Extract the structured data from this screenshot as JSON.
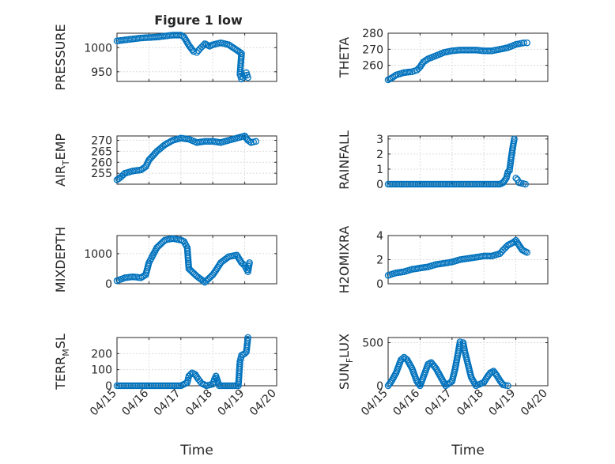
{
  "figure_title": "Figure 1 low",
  "chart_data": [
    {
      "type": "scatter",
      "ylabel": "PRESSURE",
      "ylim": [
        930,
        1030
      ],
      "yticks": [
        950,
        1000
      ],
      "xlim": [
        "04/15",
        "04/20"
      ],
      "xticks": [
        "04/15",
        "04/16",
        "04/17",
        "04/18",
        "04/19",
        "04/20"
      ],
      "xticklabels_visible": false,
      "xlabel": "",
      "points": [
        [
          0,
          1014
        ],
        [
          0.25,
          1016
        ],
        [
          0.5,
          1018
        ],
        [
          0.75,
          1020
        ],
        [
          1.0,
          1021
        ],
        [
          1.25,
          1022
        ],
        [
          1.5,
          1024
        ],
        [
          1.75,
          1026
        ],
        [
          2.0,
          1026
        ],
        [
          2.1,
          1022
        ],
        [
          2.25,
          1005
        ],
        [
          2.4,
          992
        ],
        [
          2.5,
          990
        ],
        [
          2.6,
          998
        ],
        [
          2.75,
          1008
        ],
        [
          2.9,
          1003
        ],
        [
          3.0,
          1006
        ],
        [
          3.25,
          1010
        ],
        [
          3.5,
          1006
        ],
        [
          3.75,
          995
        ],
        [
          3.9,
          988
        ],
        [
          3.85,
          945
        ],
        [
          3.9,
          935
        ],
        [
          4.0,
          942
        ],
        [
          4.05,
          948
        ],
        [
          4.1,
          938
        ]
      ]
    },
    {
      "type": "scatter",
      "ylabel": "THETA",
      "ylim": [
        250,
        280
      ],
      "yticks": [
        260,
        270,
        280
      ],
      "xlim": [
        "04/15",
        "04/20"
      ],
      "xticks": [
        "04/15",
        "04/16",
        "04/17",
        "04/18",
        "04/19",
        "04/20"
      ],
      "xticklabels_visible": false,
      "xlabel": "",
      "points": [
        [
          0,
          251
        ],
        [
          0.1,
          252
        ],
        [
          0.25,
          254
        ],
        [
          0.5,
          255.5
        ],
        [
          0.75,
          256
        ],
        [
          0.9,
          257
        ],
        [
          1.0,
          259
        ],
        [
          1.1,
          262
        ],
        [
          1.25,
          264
        ],
        [
          1.5,
          266
        ],
        [
          1.75,
          268
        ],
        [
          2.0,
          269
        ],
        [
          2.25,
          269.5
        ],
        [
          2.5,
          269.5
        ],
        [
          2.75,
          269.5
        ],
        [
          3.0,
          269
        ],
        [
          3.25,
          269
        ],
        [
          3.5,
          270
        ],
        [
          3.75,
          271
        ],
        [
          4.0,
          273
        ],
        [
          4.25,
          274
        ],
        [
          4.35,
          274
        ]
      ]
    },
    {
      "type": "scatter",
      "ylabel": "AIR_TEMP",
      "ylim": [
        250,
        272
      ],
      "yticks": [
        255,
        260,
        265,
        270
      ],
      "xlim": [
        "04/15",
        "04/20"
      ],
      "xticks": [
        "04/15",
        "04/16",
        "04/17",
        "04/18",
        "04/19",
        "04/20"
      ],
      "xticklabels_visible": false,
      "xlabel": "",
      "points": [
        [
          0,
          252
        ],
        [
          0.1,
          253
        ],
        [
          0.25,
          255
        ],
        [
          0.5,
          256
        ],
        [
          0.75,
          256.5
        ],
        [
          0.9,
          258
        ],
        [
          1.0,
          261
        ],
        [
          1.25,
          265
        ],
        [
          1.5,
          268
        ],
        [
          1.75,
          270
        ],
        [
          2.0,
          271
        ],
        [
          2.25,
          270.5
        ],
        [
          2.5,
          269
        ],
        [
          2.75,
          269.5
        ],
        [
          3.0,
          269.5
        ],
        [
          3.25,
          269
        ],
        [
          3.5,
          270
        ],
        [
          3.75,
          271
        ],
        [
          4.0,
          272
        ],
        [
          4.1,
          270
        ],
        [
          4.2,
          269
        ],
        [
          4.35,
          269.5
        ]
      ]
    },
    {
      "type": "scatter",
      "ylabel": "RAINFALL",
      "ylim": [
        0,
        3.2
      ],
      "yticks": [
        0,
        1,
        2,
        3
      ],
      "xlim": [
        "04/15",
        "04/20"
      ],
      "xticks": [
        "04/15",
        "04/16",
        "04/17",
        "04/18",
        "04/19",
        "04/20"
      ],
      "xticklabels_visible": false,
      "xlabel": "",
      "points": [
        [
          0,
          0
        ],
        [
          0.5,
          0
        ],
        [
          1.0,
          0
        ],
        [
          1.5,
          0
        ],
        [
          2.0,
          0
        ],
        [
          2.5,
          0
        ],
        [
          3.0,
          0
        ],
        [
          3.5,
          0
        ],
        [
          3.6,
          0.1
        ],
        [
          3.7,
          0.4
        ],
        [
          3.75,
          0.8
        ],
        [
          3.8,
          0.9
        ],
        [
          3.85,
          1.7
        ],
        [
          3.9,
          2.4
        ],
        [
          3.95,
          3.0
        ],
        [
          4.0,
          0.4
        ],
        [
          4.05,
          0.3
        ],
        [
          4.1,
          0.1
        ],
        [
          4.3,
          0
        ]
      ]
    },
    {
      "type": "scatter",
      "ylabel": "MIXDEPTH",
      "ylim": [
        0,
        1600
      ],
      "yticks": [
        0,
        1000
      ],
      "xlim": [
        "04/15",
        "04/20"
      ],
      "xticks": [
        "04/15",
        "04/16",
        "04/17",
        "04/18",
        "04/19",
        "04/20"
      ],
      "xticklabels_visible": false,
      "xlabel": "",
      "points": [
        [
          0,
          100
        ],
        [
          0.25,
          200
        ],
        [
          0.5,
          230
        ],
        [
          0.75,
          200
        ],
        [
          0.9,
          300
        ],
        [
          1.0,
          700
        ],
        [
          1.1,
          900
        ],
        [
          1.25,
          1200
        ],
        [
          1.5,
          1450
        ],
        [
          1.75,
          1500
        ],
        [
          2.0,
          1450
        ],
        [
          2.1,
          1400
        ],
        [
          2.2,
          1200
        ],
        [
          2.25,
          500
        ],
        [
          2.5,
          250
        ],
        [
          2.75,
          50
        ],
        [
          3.0,
          300
        ],
        [
          3.1,
          450
        ],
        [
          3.25,
          700
        ],
        [
          3.5,
          900
        ],
        [
          3.75,
          950
        ],
        [
          3.9,
          700
        ],
        [
          4.0,
          600
        ],
        [
          4.1,
          400
        ],
        [
          4.15,
          700
        ]
      ]
    },
    {
      "type": "scatter",
      "ylabel": "H2OMIXRA",
      "ylim": [
        0,
        4
      ],
      "yticks": [
        0,
        2,
        4
      ],
      "xlim": [
        "04/15",
        "04/20"
      ],
      "xticks": [
        "04/15",
        "04/16",
        "04/17",
        "04/18",
        "04/19",
        "04/20"
      ],
      "xticklabels_visible": false,
      "xlabel": "",
      "points": [
        [
          0,
          0.7
        ],
        [
          0.25,
          0.9
        ],
        [
          0.5,
          1.0
        ],
        [
          0.75,
          1.2
        ],
        [
          1.0,
          1.3
        ],
        [
          1.25,
          1.4
        ],
        [
          1.5,
          1.6
        ],
        [
          1.75,
          1.7
        ],
        [
          2.0,
          1.8
        ],
        [
          2.25,
          2.0
        ],
        [
          2.5,
          2.1
        ],
        [
          2.75,
          2.2
        ],
        [
          3.0,
          2.3
        ],
        [
          3.25,
          2.3
        ],
        [
          3.5,
          2.5
        ],
        [
          3.6,
          2.8
        ],
        [
          3.75,
          3.2
        ],
        [
          3.9,
          3.4
        ],
        [
          4.0,
          3.6
        ],
        [
          4.1,
          3.2
        ],
        [
          4.2,
          2.8
        ],
        [
          4.35,
          2.6
        ]
      ]
    },
    {
      "type": "scatter",
      "ylabel": "TERR_MSL",
      "ylim": [
        0,
        300
      ],
      "yticks": [
        0,
        100,
        200
      ],
      "xlim": [
        "04/15",
        "04/20"
      ],
      "xticks": [
        "04/15",
        "04/16",
        "04/17",
        "04/18",
        "04/19",
        "04/20"
      ],
      "xticklabels_visible": true,
      "xlabel": "Time",
      "points": [
        [
          0,
          0
        ],
        [
          0.5,
          0
        ],
        [
          1.0,
          0
        ],
        [
          1.5,
          0
        ],
        [
          2.0,
          0
        ],
        [
          2.2,
          20
        ],
        [
          2.25,
          60
        ],
        [
          2.35,
          80
        ],
        [
          2.45,
          70
        ],
        [
          2.55,
          40
        ],
        [
          2.65,
          15
        ],
        [
          2.8,
          0
        ],
        [
          3.0,
          10
        ],
        [
          3.05,
          40
        ],
        [
          3.1,
          60
        ],
        [
          3.2,
          0
        ],
        [
          3.5,
          0
        ],
        [
          3.8,
          0
        ],
        [
          3.85,
          150
        ],
        [
          3.9,
          190
        ],
        [
          4.0,
          200
        ],
        [
          4.05,
          210
        ],
        [
          4.1,
          300
        ]
      ]
    },
    {
      "type": "scatter",
      "ylabel": "SUN_FLUX",
      "ylim": [
        0,
        560
      ],
      "yticks": [
        0,
        500
      ],
      "xlim": [
        "04/15",
        "04/20"
      ],
      "xticks": [
        "04/15",
        "04/16",
        "04/17",
        "04/18",
        "04/19",
        "04/20"
      ],
      "xticklabels_visible": true,
      "xlabel": "Time",
      "points": [
        [
          0,
          0
        ],
        [
          0.1,
          50
        ],
        [
          0.25,
          150
        ],
        [
          0.4,
          300
        ],
        [
          0.5,
          330
        ],
        [
          0.6,
          300
        ],
        [
          0.75,
          200
        ],
        [
          0.9,
          50
        ],
        [
          1.0,
          0
        ],
        [
          1.1,
          100
        ],
        [
          1.25,
          250
        ],
        [
          1.35,
          270
        ],
        [
          1.5,
          200
        ],
        [
          1.65,
          100
        ],
        [
          1.8,
          0
        ],
        [
          2.0,
          50
        ],
        [
          2.1,
          200
        ],
        [
          2.2,
          400
        ],
        [
          2.25,
          510
        ],
        [
          2.35,
          500
        ],
        [
          2.4,
          400
        ],
        [
          2.5,
          250
        ],
        [
          2.6,
          100
        ],
        [
          2.75,
          0
        ],
        [
          3.0,
          40
        ],
        [
          3.1,
          100
        ],
        [
          3.2,
          150
        ],
        [
          3.3,
          170
        ],
        [
          3.4,
          120
        ],
        [
          3.5,
          60
        ],
        [
          3.6,
          10
        ],
        [
          3.75,
          0
        ]
      ]
    }
  ]
}
